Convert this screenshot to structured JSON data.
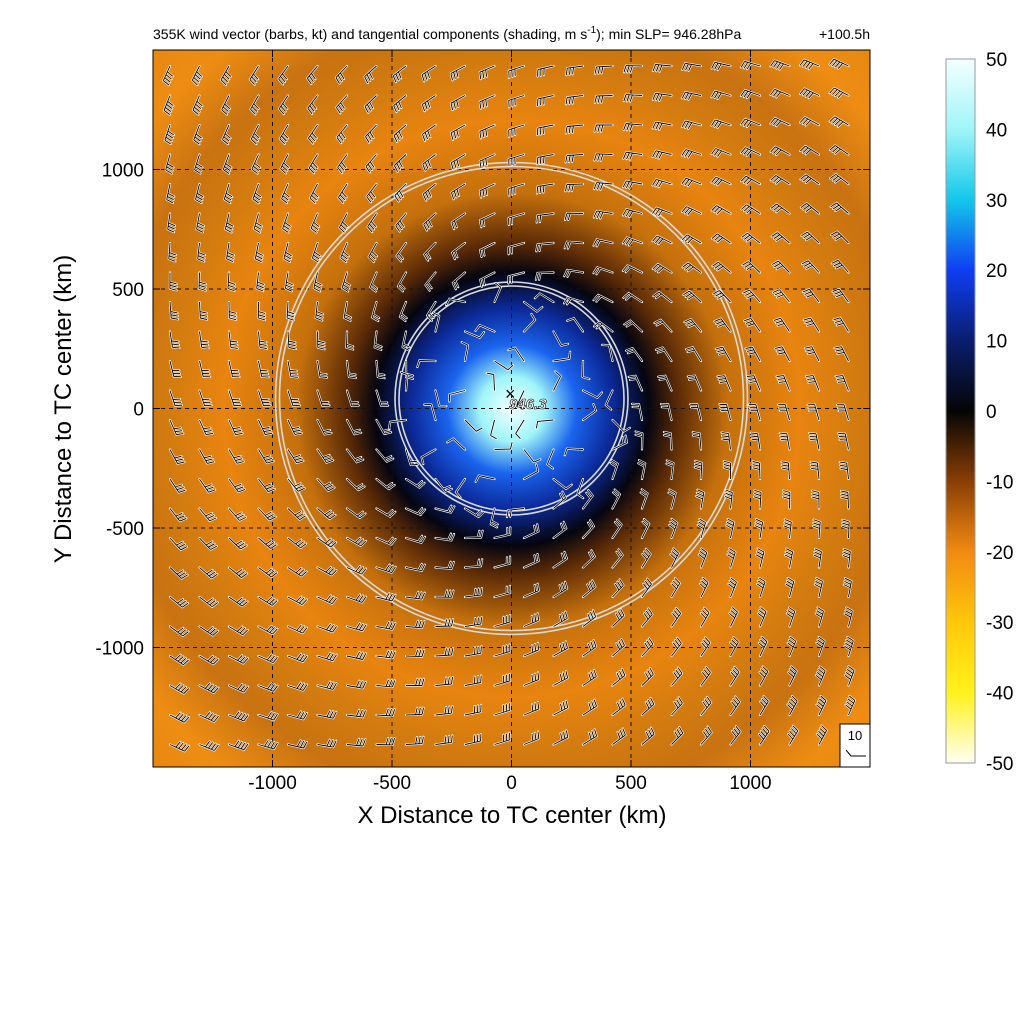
{
  "chart_data": {
    "type": "heatmap",
    "title": "355K wind vector (barbs, kt) and tangential components (shading, m s",
    "title_superscript": "-1",
    "title_suffix": "); min SLP= 946.28hPa",
    "time_label": "+100.5h",
    "xlabel": "X Distance to TC center (km)",
    "ylabel": "Y Distance to TC center (km)",
    "xlim": [
      -1500,
      1500
    ],
    "ylim": [
      -1500,
      1500
    ],
    "xticks": [
      -1000,
      -500,
      0,
      500,
      1000
    ],
    "yticks": [
      -1000,
      -500,
      0,
      500,
      1000
    ],
    "grid": "dashed",
    "colorbar": {
      "min": -50,
      "max": 50,
      "ticks": [
        50,
        40,
        30,
        20,
        10,
        0,
        -10,
        -20,
        -30,
        -40,
        -50
      ],
      "colors": {
        "50": "#f4ffff",
        "40": "#9ff5f8",
        "30": "#12c8ea",
        "20": "#0f3ef2",
        "10": "#0a1e6e",
        "0": "#050505",
        "-10": "#8a3f05",
        "-20": "#f28a12",
        "-30": "#ffc70a",
        "-40": "#fff21a",
        "-50": "#fffef4"
      }
    },
    "center_mark": "×",
    "center_label": "946.3",
    "min_slp_hpa": 946.28,
    "range_rings_km": [
      500,
      1000
    ],
    "barb_reference_label": "10",
    "barb_units": "kt"
  }
}
